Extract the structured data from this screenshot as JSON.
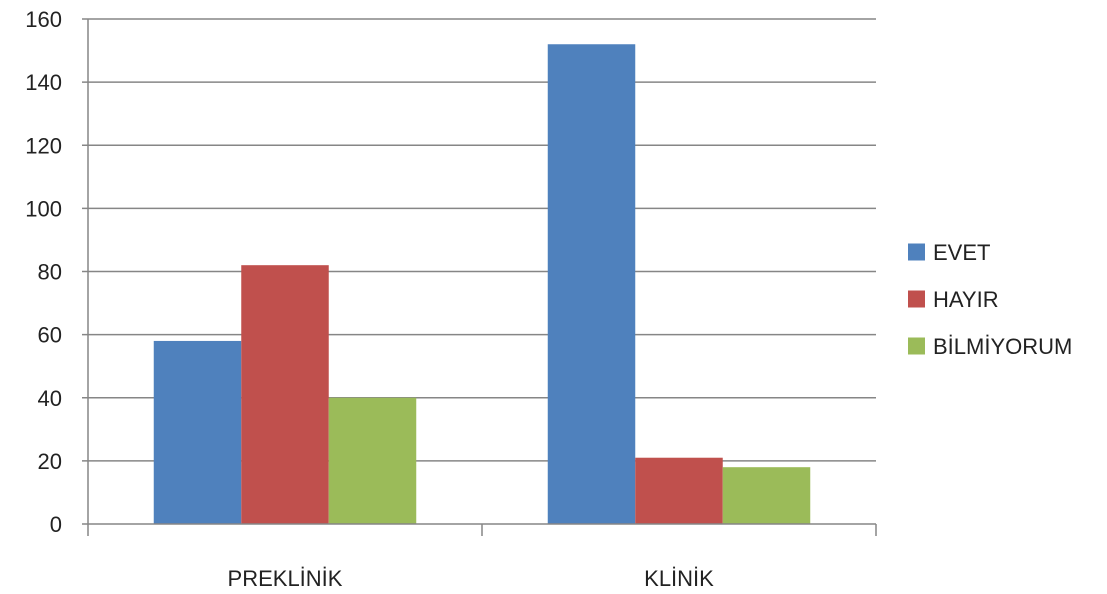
{
  "chart_data": {
    "type": "bar",
    "categories": [
      "PREKLİNİK",
      "KLİNİK"
    ],
    "series": [
      {
        "name": "EVET",
        "values": [
          58,
          152
        ],
        "color": "#4F81BD"
      },
      {
        "name": "HAYIR",
        "values": [
          82,
          21
        ],
        "color": "#C0504D"
      },
      {
        "name": "BİLMİYORUM",
        "values": [
          40,
          18
        ],
        "color": "#9BBB59"
      }
    ],
    "ylim": [
      0,
      160
    ],
    "yticks": [
      0,
      20,
      40,
      60,
      80,
      100,
      120,
      140,
      160
    ],
    "grid": true,
    "legend_position": "right",
    "title": "",
    "xlabel": "",
    "ylabel": ""
  }
}
